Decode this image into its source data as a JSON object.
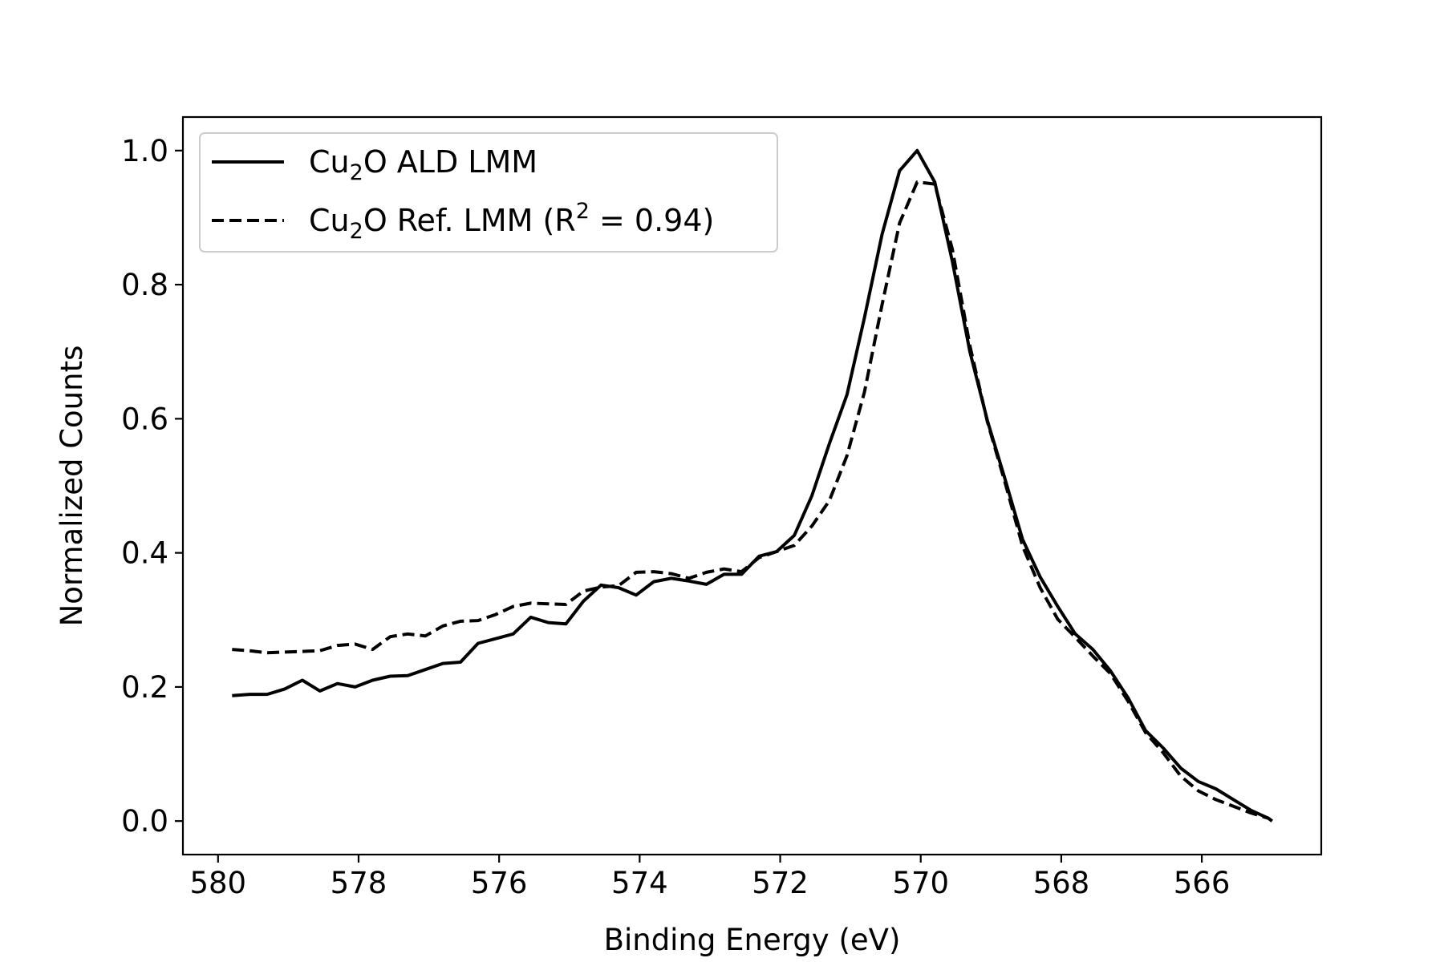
{
  "chart_data": {
    "type": "line",
    "title": "",
    "xlabel": "Binding Energy (eV)",
    "ylabel": "Normalized Counts",
    "xlim": [
      580.5,
      564.3
    ],
    "ylim": [
      -0.05,
      1.05
    ],
    "x_inverted": true,
    "xticks": [
      580,
      578,
      576,
      574,
      572,
      570,
      568,
      566
    ],
    "xtick_labels": [
      "580",
      "578",
      "576",
      "574",
      "572",
      "570",
      "568",
      "566"
    ],
    "yticks": [
      0.0,
      0.2,
      0.4,
      0.6,
      0.8,
      1.0
    ],
    "ytick_labels": [
      "0.0",
      "0.2",
      "0.4",
      "0.6",
      "0.8",
      "1.0"
    ],
    "grid": false,
    "legend_position": "top-left",
    "series": [
      {
        "name": "Cu₂O ALD LMM",
        "legend": {
          "pre": "Cu",
          "sub": "2",
          "post": "O ALD LMM"
        },
        "line_style": "solid",
        "color": "#000000",
        "x": [
          579.8,
          579.55,
          579.3,
          579.05,
          578.8,
          578.55,
          578.3,
          578.05,
          577.8,
          577.55,
          577.3,
          577.05,
          576.8,
          576.55,
          576.3,
          576.05,
          575.8,
          575.55,
          575.3,
          575.05,
          574.8,
          574.55,
          574.3,
          574.05,
          573.8,
          573.55,
          573.3,
          573.05,
          572.8,
          572.55,
          572.3,
          572.05,
          571.8,
          571.55,
          571.3,
          571.05,
          570.8,
          570.55,
          570.3,
          570.05,
          569.8,
          569.55,
          569.3,
          569.05,
          568.8,
          568.55,
          568.3,
          568.05,
          567.8,
          567.55,
          567.3,
          567.05,
          566.8,
          566.55,
          566.3,
          566.05,
          565.8,
          565.55,
          565.3,
          565.05,
          565.0
        ],
        "y": [
          0.187,
          0.189,
          0.189,
          0.197,
          0.21,
          0.194,
          0.205,
          0.2,
          0.21,
          0.216,
          0.217,
          0.226,
          0.235,
          0.237,
          0.265,
          0.272,
          0.279,
          0.304,
          0.296,
          0.294,
          0.328,
          0.352,
          0.348,
          0.337,
          0.357,
          0.362,
          0.358,
          0.353,
          0.368,
          0.368,
          0.395,
          0.402,
          0.426,
          0.485,
          0.563,
          0.636,
          0.751,
          0.875,
          0.97,
          1.0,
          0.953,
          0.835,
          0.7,
          0.597,
          0.51,
          0.42,
          0.364,
          0.32,
          0.279,
          0.256,
          0.224,
          0.184,
          0.135,
          0.109,
          0.079,
          0.059,
          0.048,
          0.032,
          0.016,
          0.004,
          0.0
        ]
      },
      {
        "name": "Cu₂O Ref. LMM (R² = 0.94)",
        "legend": {
          "pre": "Cu",
          "sub": "2",
          "mid": "O Ref. LMM (R",
          "sup": "2",
          "post": " = 0.94)"
        },
        "line_style": "dashed",
        "color": "#000000",
        "x": [
          579.8,
          579.55,
          579.3,
          579.05,
          578.8,
          578.55,
          578.3,
          578.05,
          577.8,
          577.55,
          577.3,
          577.05,
          576.8,
          576.55,
          576.3,
          576.05,
          575.8,
          575.55,
          575.3,
          575.05,
          574.8,
          574.55,
          574.3,
          574.05,
          573.8,
          573.55,
          573.3,
          573.05,
          572.8,
          572.55,
          572.3,
          572.05,
          571.8,
          571.55,
          571.3,
          571.05,
          570.8,
          570.55,
          570.3,
          570.05,
          569.8,
          569.55,
          569.3,
          569.05,
          568.8,
          568.55,
          568.3,
          568.05,
          567.8,
          567.55,
          567.3,
          567.05,
          566.8,
          566.55,
          566.3,
          566.05,
          565.8,
          565.55,
          565.3,
          565.05,
          565.0
        ],
        "y": [
          0.256,
          0.254,
          0.251,
          0.252,
          0.253,
          0.254,
          0.262,
          0.264,
          0.256,
          0.275,
          0.279,
          0.276,
          0.291,
          0.298,
          0.299,
          0.308,
          0.32,
          0.325,
          0.324,
          0.323,
          0.343,
          0.349,
          0.351,
          0.371,
          0.372,
          0.369,
          0.362,
          0.371,
          0.376,
          0.372,
          0.393,
          0.402,
          0.411,
          0.44,
          0.478,
          0.545,
          0.64,
          0.77,
          0.892,
          0.953,
          0.95,
          0.853,
          0.709,
          0.595,
          0.505,
          0.41,
          0.348,
          0.301,
          0.274,
          0.246,
          0.22,
          0.179,
          0.132,
          0.102,
          0.067,
          0.045,
          0.032,
          0.022,
          0.012,
          0.004,
          0.0
        ]
      }
    ]
  }
}
